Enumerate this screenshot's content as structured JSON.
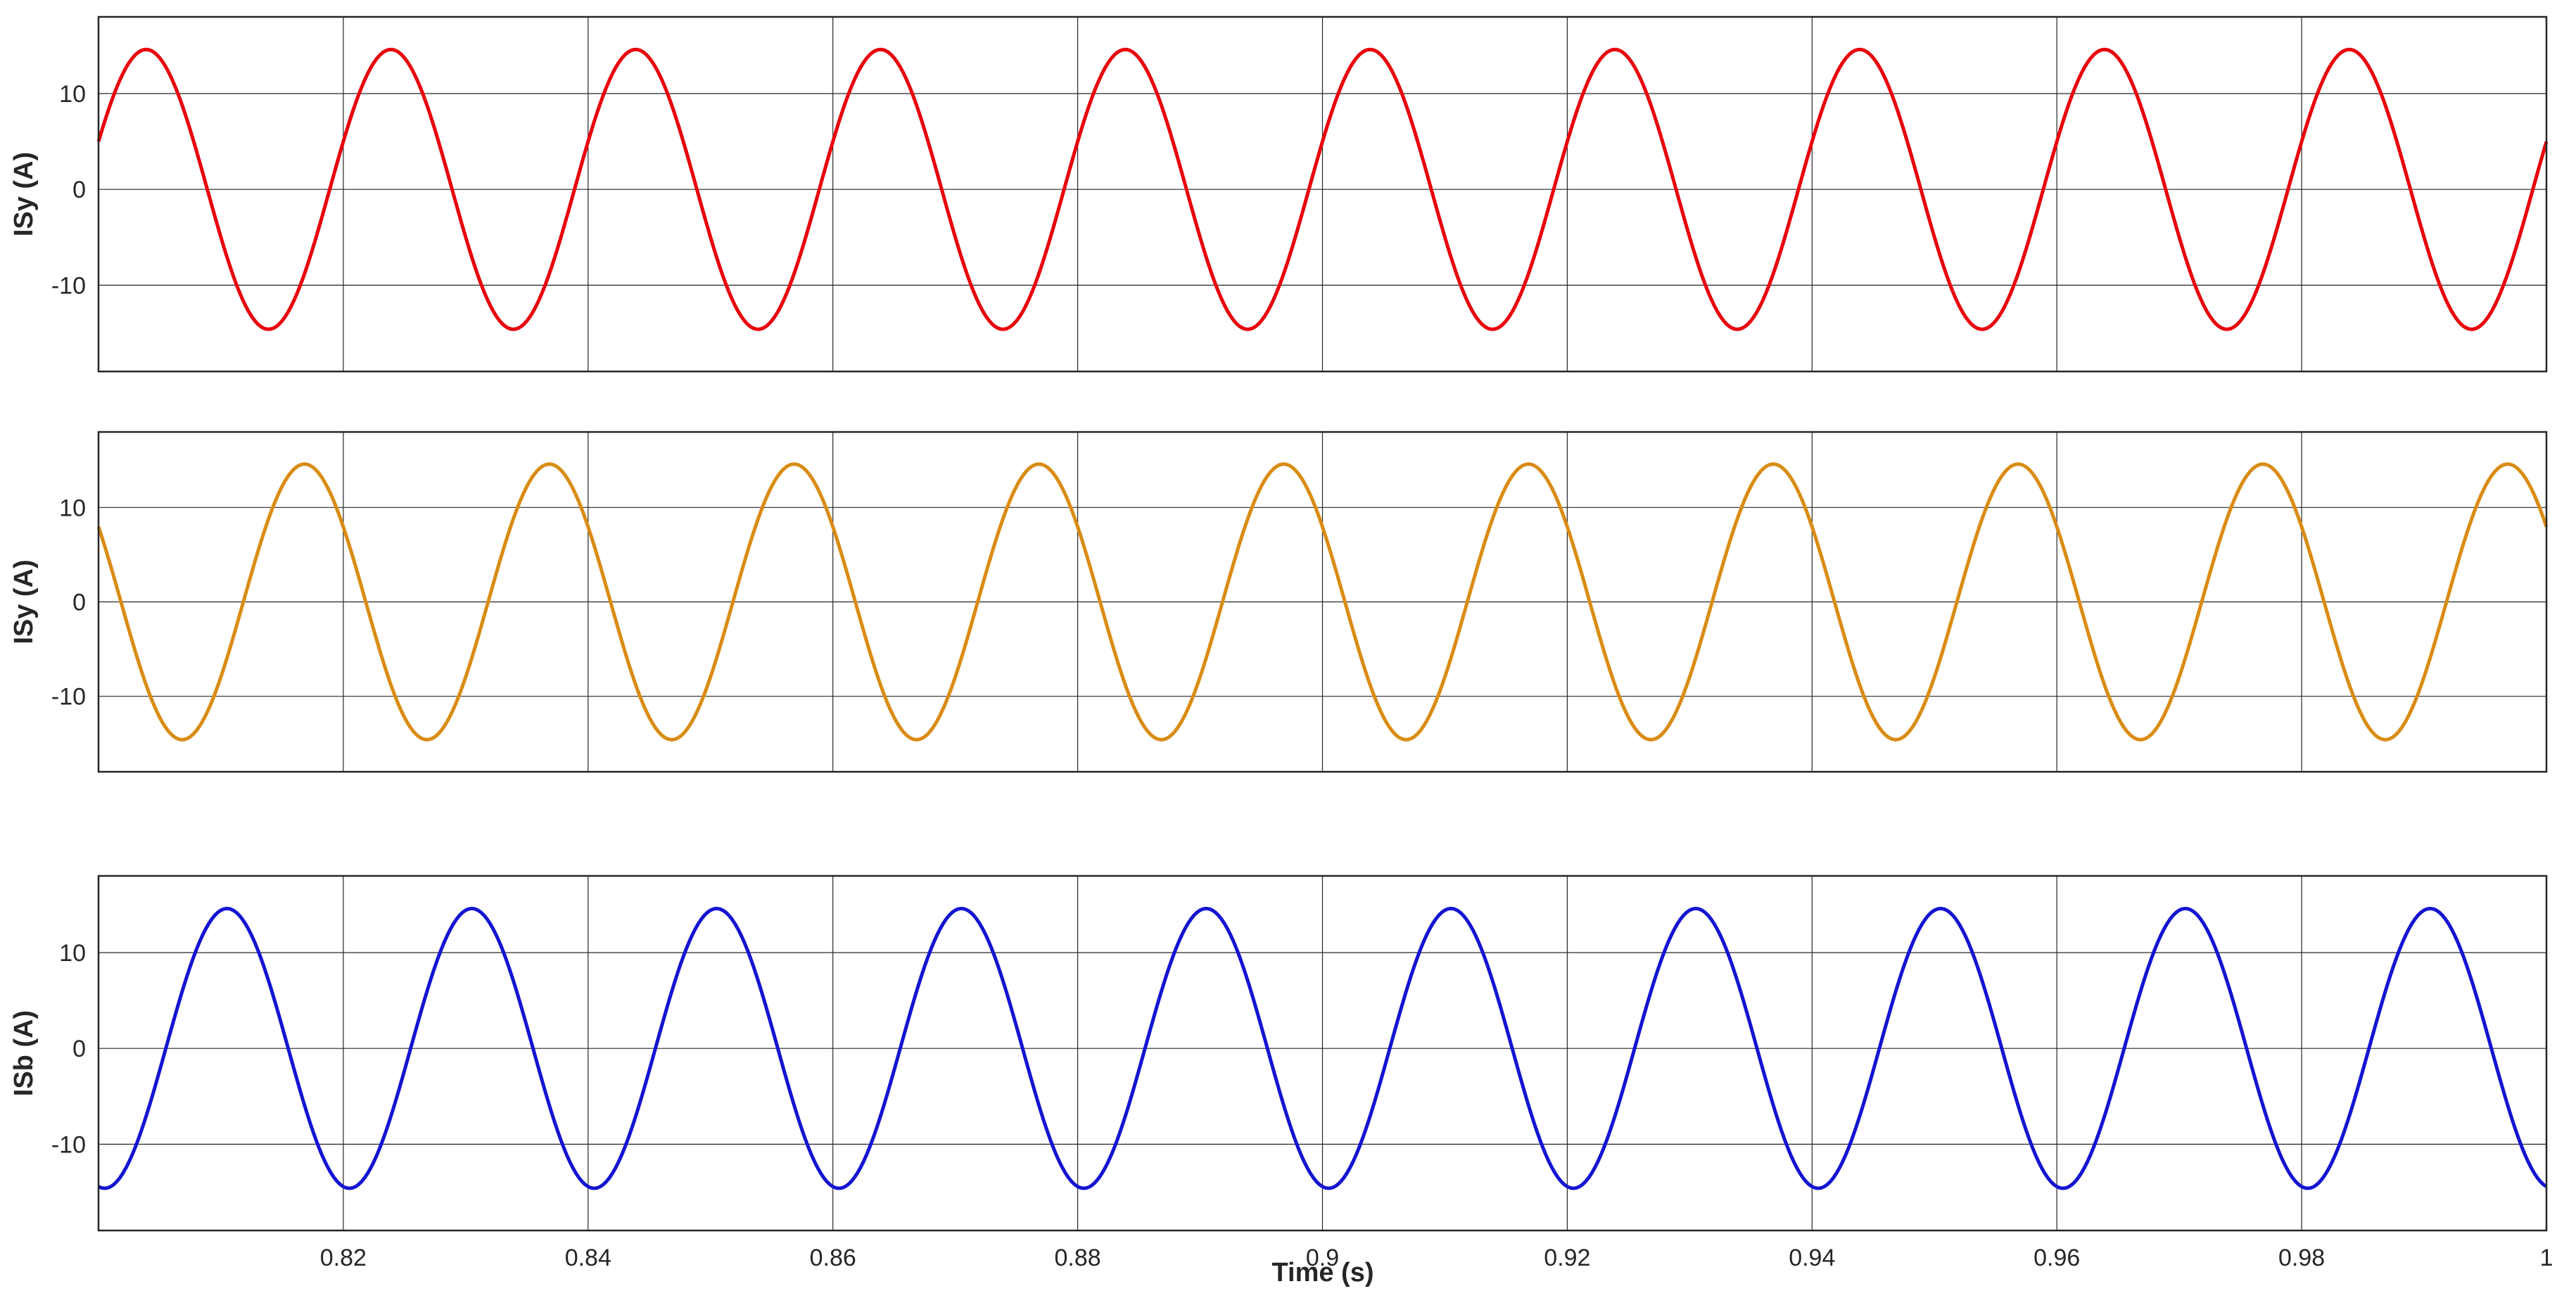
{
  "chart_data": [
    {
      "type": "line",
      "ylabel": "ISy (A)",
      "xlabel": "",
      "xlim": [
        0.8,
        1.0
      ],
      "ylim": [
        -19,
        18
      ],
      "yticks": [
        -10,
        0,
        10
      ],
      "xticks": [
        0.82,
        0.84,
        0.86,
        0.88,
        0.9,
        0.92,
        0.94,
        0.96,
        0.98,
        1
      ],
      "xtick_labels_shown": false,
      "grid": true,
      "color": "#E8000B",
      "series": [
        {
          "amplitude": 14.6,
          "frequency_hz": 50,
          "phase_deg": 20,
          "samples": 801
        }
      ]
    },
    {
      "type": "line",
      "ylabel": "ISy (A)",
      "xlabel": "",
      "xlim": [
        0.8,
        1.0
      ],
      "ylim": [
        -18,
        18
      ],
      "yticks": [
        -10,
        0,
        10
      ],
      "xticks": [
        0.82,
        0.84,
        0.86,
        0.88,
        0.9,
        0.92,
        0.94,
        0.96,
        0.98,
        1
      ],
      "xtick_labels_shown": false,
      "grid": true,
      "color": "#D98C14",
      "series": [
        {
          "amplitude": 14.6,
          "frequency_hz": 50,
          "phase_deg": 147,
          "samples": 801
        }
      ]
    },
    {
      "type": "line",
      "ylabel": "ISb (A)",
      "xlabel": "Time (s)",
      "xlim": [
        0.8,
        1.0
      ],
      "ylim": [
        -19,
        18
      ],
      "yticks": [
        -10,
        0,
        10
      ],
      "xticks": [
        0.82,
        0.84,
        0.86,
        0.88,
        0.9,
        0.92,
        0.94,
        0.96,
        0.98,
        1
      ],
      "xtick_labels": [
        "0.82",
        "0.84",
        "0.86",
        "0.88",
        "0.9",
        "0.92",
        "0.94",
        "0.96",
        "0.98",
        "1"
      ],
      "xtick_labels_shown": true,
      "grid": true,
      "color": "#1414D2",
      "series": [
        {
          "amplitude": 14.6,
          "frequency_hz": 50,
          "phase_deg": -99,
          "samples": 801
        }
      ]
    }
  ]
}
